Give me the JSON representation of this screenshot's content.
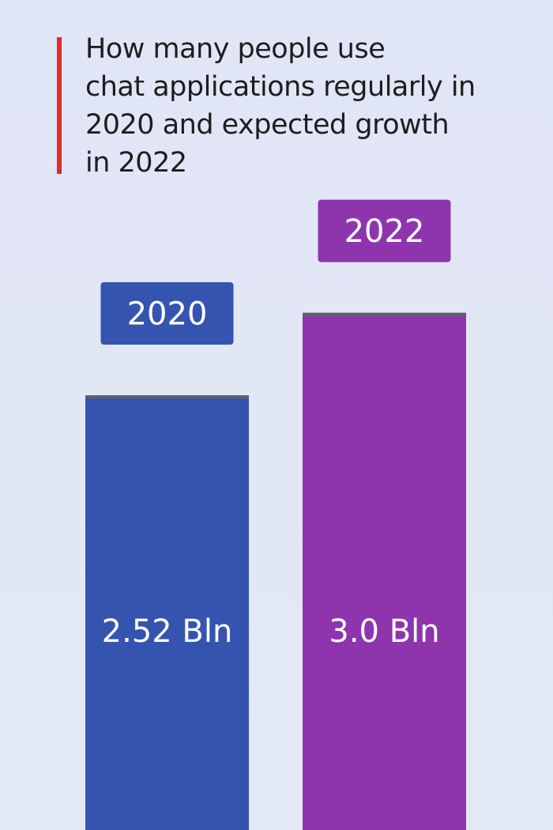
{
  "title_lines": [
    "How many people use",
    "chat applications regularly in",
    "2020 and expected growth",
    "in 2022"
  ],
  "colors": {
    "accent": "#e02a2a",
    "background": "#e2e7f6",
    "bar_2020": "#3454b0",
    "bar_2022": "#8e35ae",
    "bar_cap": "#5f5f66"
  },
  "chart_data": {
    "type": "bar",
    "title": "How many people use chat applications regularly in 2020 and expected growth in 2022",
    "categories": [
      "2020",
      "2022"
    ],
    "values": [
      2.52,
      3.0
    ],
    "value_labels": [
      "2.52 Bln",
      "3.0 Bln"
    ],
    "unit": "Bln",
    "xlabel": "",
    "ylabel": "",
    "grid": false,
    "legend": "none"
  }
}
